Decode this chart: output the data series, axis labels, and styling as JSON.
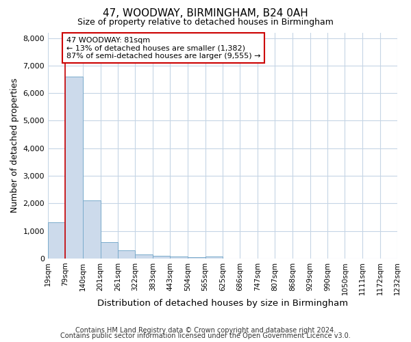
{
  "title": "47, WOODWAY, BIRMINGHAM, B24 0AH",
  "subtitle": "Size of property relative to detached houses in Birmingham",
  "xlabel": "Distribution of detached houses by size in Birmingham",
  "ylabel": "Number of detached properties",
  "footnote1": "Contains HM Land Registry data © Crown copyright and database right 2024.",
  "footnote2": "Contains public sector information licensed under the Open Government Licence v3.0.",
  "annotation_title": "47 WOODWAY: 81sqm",
  "annotation_line1": "← 13% of detached houses are smaller (1,382)",
  "annotation_line2": "87% of semi-detached houses are larger (9,555) →",
  "vline_x": 79,
  "bar_left_edges": [
    19,
    79,
    140,
    201,
    261,
    322,
    383,
    443,
    504,
    565,
    625,
    686,
    747,
    807,
    868,
    929,
    990,
    1050,
    1111,
    1172
  ],
  "bar_widths": [
    60,
    61,
    61,
    60,
    61,
    61,
    60,
    61,
    61,
    60,
    61,
    61,
    60,
    61,
    61,
    61,
    60,
    61,
    61,
    60
  ],
  "bar_heights": [
    1300,
    6600,
    2100,
    600,
    300,
    150,
    100,
    70,
    50,
    60,
    0,
    0,
    0,
    0,
    0,
    0,
    0,
    0,
    0,
    0
  ],
  "tick_labels": [
    "19sqm",
    "79sqm",
    "140sqm",
    "201sqm",
    "261sqm",
    "322sqm",
    "383sqm",
    "443sqm",
    "504sqm",
    "565sqm",
    "625sqm",
    "686sqm",
    "747sqm",
    "807sqm",
    "868sqm",
    "929sqm",
    "990sqm",
    "1050sqm",
    "1111sqm",
    "1172sqm",
    "1232sqm"
  ],
  "bar_color": "#ccdaeb",
  "bar_edge_color": "#7aabcc",
  "annotation_box_color": "#ffffff",
  "annotation_box_edge": "#cc0000",
  "vline_color": "#cc0000",
  "grid_color": "#c5d5e5",
  "background_color": "#ffffff",
  "ylim": [
    0,
    8200
  ],
  "yticks": [
    0,
    1000,
    2000,
    3000,
    4000,
    5000,
    6000,
    7000,
    8000
  ]
}
